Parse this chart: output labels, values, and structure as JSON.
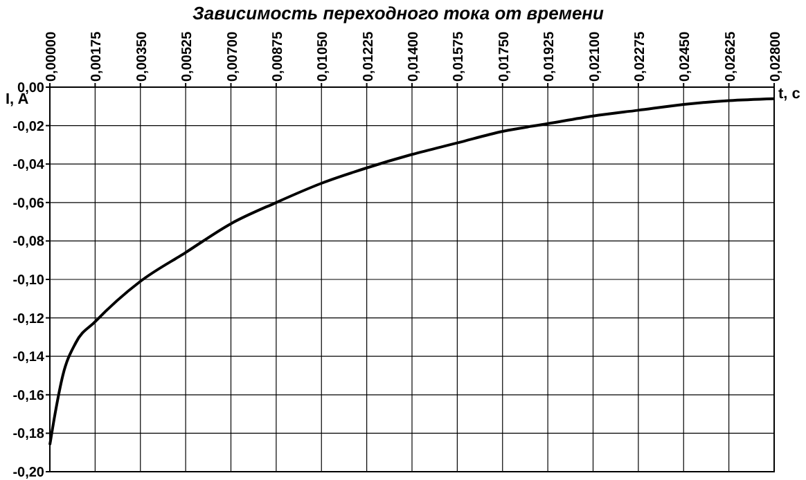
{
  "chart_data": {
    "type": "line",
    "title": "Зависимость переходного тока от времени",
    "xlabel": "t, c",
    "ylabel": "I, A",
    "xlim": [
      0,
      0.028
    ],
    "ylim": [
      -0.2,
      0
    ],
    "xticks": [
      {
        "value": 0,
        "label": "0,00000"
      },
      {
        "value": 0.00175,
        "label": "0,00175"
      },
      {
        "value": 0.0035,
        "label": "0,00350"
      },
      {
        "value": 0.00525,
        "label": "0,00525"
      },
      {
        "value": 0.007,
        "label": "0,00700"
      },
      {
        "value": 0.00875,
        "label": "0,00875"
      },
      {
        "value": 0.0105,
        "label": "0,01050"
      },
      {
        "value": 0.01225,
        "label": "0,01225"
      },
      {
        "value": 0.014,
        "label": "0,01400"
      },
      {
        "value": 0.01575,
        "label": "0,01575"
      },
      {
        "value": 0.0175,
        "label": "0,01750"
      },
      {
        "value": 0.01925,
        "label": "0,01925"
      },
      {
        "value": 0.021,
        "label": "0,02100"
      },
      {
        "value": 0.02275,
        "label": "0,02275"
      },
      {
        "value": 0.0245,
        "label": "0,02450"
      },
      {
        "value": 0.02625,
        "label": "0,02625"
      },
      {
        "value": 0.028,
        "label": "0,02800"
      }
    ],
    "yticks": [
      {
        "value": 0,
        "label": "0,00"
      },
      {
        "value": -0.02,
        "label": "-0,02"
      },
      {
        "value": -0.04,
        "label": "-0,04"
      },
      {
        "value": -0.06,
        "label": "-0,06"
      },
      {
        "value": -0.08,
        "label": "-0,08"
      },
      {
        "value": -0.1,
        "label": "-0,10"
      },
      {
        "value": -0.12,
        "label": "-0,12"
      },
      {
        "value": -0.14,
        "label": "-0,14"
      },
      {
        "value": -0.16,
        "label": "-0,16"
      },
      {
        "value": -0.18,
        "label": "-0,18"
      },
      {
        "value": -0.2,
        "label": "-0,20"
      }
    ],
    "grid": true,
    "x": [
      0,
      0.0002,
      0.0005,
      0.001,
      0.00175,
      0.0035,
      0.00525,
      0.007,
      0.00875,
      0.0105,
      0.01225,
      0.014,
      0.01575,
      0.0175,
      0.01925,
      0.021,
      0.02275,
      0.0245,
      0.02625,
      0.028
    ],
    "series": [
      {
        "color": "#000000",
        "values": [
          -0.186,
          -0.17,
          -0.15,
          -0.133,
          -0.122,
          -0.101,
          -0.086,
          -0.071,
          -0.06,
          -0.05,
          -0.042,
          -0.035,
          -0.029,
          -0.023,
          -0.019,
          -0.015,
          -0.012,
          -0.009,
          -0.007,
          -0.006
        ]
      }
    ]
  }
}
